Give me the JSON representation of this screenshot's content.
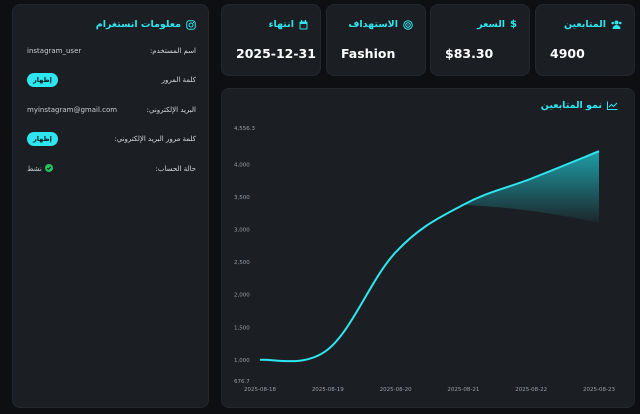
{
  "stats": {
    "followers": {
      "label": "المتابعين",
      "value": "4900",
      "icon": "users-icon"
    },
    "price": {
      "label": "السعر",
      "value": "$83.30",
      "icon": "dollar-icon"
    },
    "targeting": {
      "label": "الاستهداف",
      "value": "Fashion",
      "icon": "target-icon"
    },
    "expiry": {
      "label": "انتهاء",
      "value": "2025-12-31",
      "icon": "calendar-icon"
    }
  },
  "info": {
    "title": "معلومات انستغرام",
    "username_label": "اسم المستخدم:",
    "username_value": "instagram_user",
    "password_label": "كلمة المرور",
    "email_label": "البريد الإلكتروني:",
    "email_value": "myinstagram@gmail.com",
    "email_password_label": "كلمة مرور البريد الإلكتروني:",
    "show_label": "إظهار",
    "status_label": "حالة الحساب:",
    "status_value": "نشط"
  },
  "chart_data": {
    "type": "area",
    "title": "نمو المتابعين",
    "x": [
      "2025-08-18",
      "2025-08-19",
      "2025-08-20",
      "2025-08-21",
      "2025-08-22",
      "2025-08-23"
    ],
    "series": [
      {
        "values": [
          1000,
          1160,
          2650,
          3380,
          3780,
          4200
        ]
      }
    ],
    "fill_start_x": "2025-08-21",
    "ylim": [
      676.7,
      4556.3
    ],
    "yticks": [
      676.7,
      1000,
      1500,
      2000,
      2500,
      3000,
      3500,
      4000,
      4556.3
    ],
    "ytick_labels": [
      "676.7",
      "1,000",
      "1,500",
      "2,000",
      "2,500",
      "3,000",
      "3,500",
      "4,000",
      "4,556.3"
    ],
    "grid": false,
    "line_color": "#2ee6f0"
  }
}
